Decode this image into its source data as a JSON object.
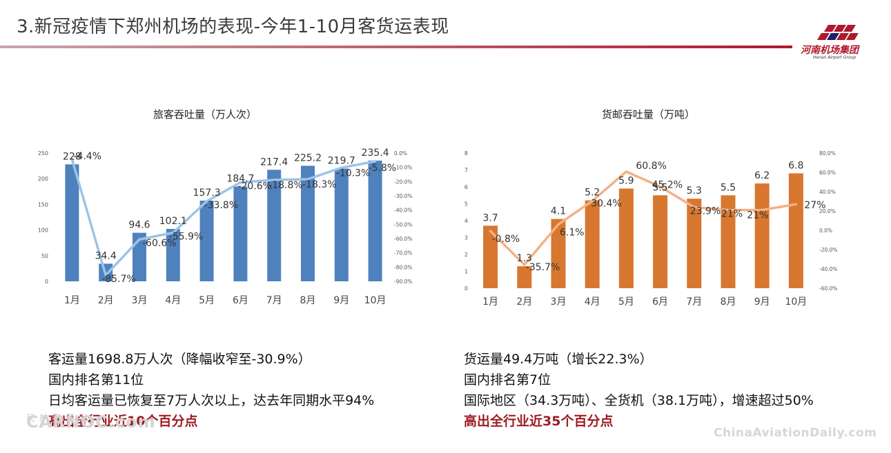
{
  "header": {
    "title": "3.新冠疫情下郑州机场的表现-今年1-10月客货运表现",
    "logo_name": "河南机场集团",
    "logo_sub": "Henan Airport Group"
  },
  "chart_data": [
    {
      "type": "bar",
      "title": "旅客吞吐量（万人次）",
      "categories": [
        "1月",
        "2月",
        "3月",
        "4月",
        "5月",
        "6月",
        "7月",
        "8月",
        "9月",
        "10月"
      ],
      "series": [
        {
          "values": [
            228,
            34.4,
            94.6,
            102.1,
            157.3,
            184.7,
            217.4,
            225.2,
            219.7,
            235.4
          ],
          "color": "#4f81bd"
        },
        {
          "type": "line",
          "axis": "right",
          "values": [
            -4.4,
            -85.7,
            -60.6,
            -55.9,
            -33.8,
            -20.6,
            -18.8,
            -18.3,
            -10.3,
            -5.8
          ],
          "color": "#9dc3e6"
        }
      ],
      "bar_labels": [
        "228",
        "34.4",
        "94.6",
        "102.1",
        "157.3",
        "184.7",
        "217.4",
        "225.2",
        "219.7",
        "235.4"
      ],
      "line_labels": [
        "-4.4%",
        "-85.7%",
        "-60.6%",
        "-55.9%",
        "-33.8%",
        "-20.6%",
        "-18.8%",
        "-18.3%",
        "-10.3%",
        "-5.8%"
      ],
      "ylim": [
        0,
        250
      ],
      "yticks": [
        "0",
        "50",
        "100",
        "150",
        "200",
        "250"
      ],
      "y2lim": [
        -90,
        0
      ],
      "y2ticks": [
        "0.0%",
        "-10.0%",
        "-20.0%",
        "-30.0%",
        "-40.0%",
        "-50.0%",
        "-60.0%",
        "-70.0%",
        "-80.0%",
        "-90.0%"
      ],
      "grid": false
    },
    {
      "type": "bar",
      "title": "货邮吞吐量（万吨）",
      "categories": [
        "1月",
        "2月",
        "3月",
        "4月",
        "5月",
        "6月",
        "7月",
        "8月",
        "9月",
        "10月"
      ],
      "series": [
        {
          "values": [
            3.7,
            1.3,
            4.1,
            5.2,
            5.9,
            5.5,
            5.3,
            5.5,
            6.2,
            6.8
          ],
          "color": "#d8772f"
        },
        {
          "type": "line",
          "axis": "right",
          "values": [
            -0.8,
            -35.7,
            6.1,
            30.4,
            60.8,
            45.2,
            23.9,
            21,
            21,
            27
          ],
          "color": "#f4b183"
        }
      ],
      "bar_labels": [
        "3.7",
        "1.3",
        "4.1",
        "5.2",
        "5.9",
        "5.5",
        "5.3",
        "5.5",
        "6.2",
        "6.8"
      ],
      "line_labels": [
        "-0.8%",
        "-35.7%",
        "6.1%",
        "30.4%",
        "60.8%",
        "45.2%",
        "23.9%",
        "21%",
        "21%",
        "27%"
      ],
      "ylim": [
        0,
        8
      ],
      "yticks": [
        "0",
        "1",
        "2",
        "3",
        "4",
        "5",
        "6",
        "7",
        "8"
      ],
      "y2lim": [
        -60,
        80
      ],
      "y2ticks": [
        "80.0%",
        "60.0%",
        "40.0%",
        "20.0%",
        "0.0%",
        "-20.0%",
        "-40.0%",
        "-60.0%"
      ],
      "grid": false
    }
  ],
  "stats_left": {
    "line1": "客运量1698.8万人次（降幅收窄至-30.9%）",
    "line2": "国内排名第11位",
    "line3": "日均客运量已恢复至7万人次以上，达去年同期水平94%",
    "highlight": "高出全行业近10个百分点"
  },
  "stats_right": {
    "line1": "货运量49.4万吨（增长22.3%）",
    "line2": "国内排名第7位",
    "line3": "国际地区（34.3万吨）、全货机（38.1万吨），增速超过50%",
    "highlight": "高出全行业近35个百分点"
  },
  "watermark": {
    "left_cn": "民航资源网",
    "left": "CARNOC.com",
    "right": "ChinaAviationDaily.com"
  }
}
